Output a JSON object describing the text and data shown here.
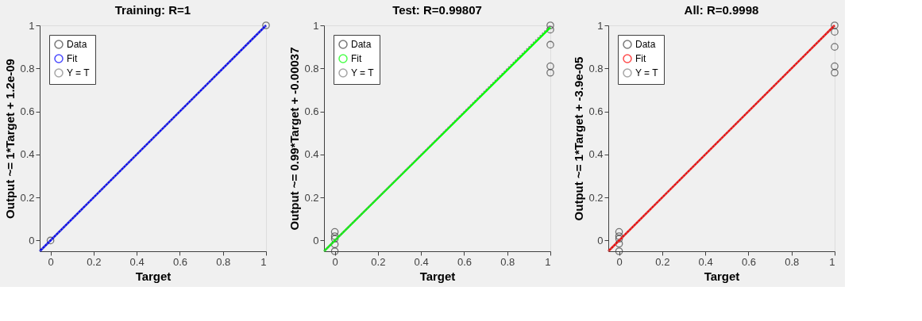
{
  "chart_data": [
    {
      "type": "scatter",
      "title": "Training: R=1",
      "xlabel": "Target",
      "ylabel": "Output ~= 1*Target + 1.2e-09",
      "xlim": [
        -0.05,
        1
      ],
      "ylim": [
        -0.05,
        1
      ],
      "xticks": [
        0,
        0.2,
        0.4,
        0.6,
        0.8,
        1
      ],
      "yticks": [
        0,
        0.2,
        0.4,
        0.6,
        0.8,
        1
      ],
      "grid": false,
      "legend": "top left",
      "series": [
        {
          "name": "Data",
          "marker": "circle",
          "color": "#404040",
          "x": [
            0,
            1
          ],
          "values": [
            0,
            1
          ]
        },
        {
          "name": "Fit",
          "type": "line",
          "line_style": "solid",
          "color": "#0000ff",
          "x": [
            -0.05,
            1
          ],
          "values": [
            -0.05,
            1
          ]
        },
        {
          "name": "Y = T",
          "type": "line",
          "line_style": "dotted",
          "color": "#808080",
          "x": [
            -0.05,
            1
          ],
          "values": [
            -0.05,
            1
          ]
        }
      ]
    },
    {
      "type": "scatter",
      "title": "Test: R=0.99807",
      "xlabel": "Target",
      "ylabel": "Output ~= 0.99*Target + -0.00037",
      "xlim": [
        -0.05,
        1
      ],
      "ylim": [
        -0.05,
        1
      ],
      "xticks": [
        0,
        0.2,
        0.4,
        0.6,
        0.8,
        1
      ],
      "yticks": [
        0,
        0.2,
        0.4,
        0.6,
        0.8,
        1
      ],
      "grid": false,
      "legend": "top left",
      "series": [
        {
          "name": "Data",
          "marker": "circle",
          "color": "#404040",
          "x": [
            0,
            0,
            0,
            0,
            0,
            1,
            1,
            1,
            1,
            1
          ],
          "values": [
            0.04,
            0.02,
            0.008,
            -0.018,
            -0.05,
            1,
            0.98,
            0.91,
            0.81,
            0.78
          ]
        },
        {
          "name": "Fit",
          "type": "line",
          "line_style": "solid",
          "color": "#00ff00",
          "x": [
            -0.05,
            1
          ],
          "values": [
            -0.05,
            0.99
          ]
        },
        {
          "name": "Y = T",
          "type": "line",
          "line_style": "dotted",
          "color": "#808080",
          "x": [
            -0.05,
            1
          ],
          "values": [
            -0.05,
            1
          ]
        }
      ]
    },
    {
      "type": "scatter",
      "title": "All: R=0.9998",
      "xlabel": "Target",
      "ylabel": "Output ~= 1*Target + -3.9e-05",
      "xlim": [
        -0.05,
        1
      ],
      "ylim": [
        -0.05,
        1
      ],
      "xticks": [
        0,
        0.2,
        0.4,
        0.6,
        0.8,
        1
      ],
      "yticks": [
        0,
        0.2,
        0.4,
        0.6,
        0.8,
        1
      ],
      "grid": false,
      "legend": "top left",
      "series": [
        {
          "name": "Data",
          "marker": "circle",
          "color": "#404040",
          "x": [
            0,
            0,
            0,
            0,
            0,
            1,
            1,
            1,
            1,
            1
          ],
          "values": [
            0.04,
            0.02,
            0.008,
            -0.015,
            -0.05,
            1,
            0.97,
            0.9,
            0.81,
            0.78
          ]
        },
        {
          "name": "Fit",
          "type": "line",
          "line_style": "solid",
          "color": "#ff0000",
          "x": [
            -0.05,
            1
          ],
          "values": [
            -0.05,
            1
          ]
        },
        {
          "name": "Y = T",
          "type": "line",
          "line_style": "dotted",
          "color": "#808080",
          "x": [
            -0.05,
            1
          ],
          "values": [
            -0.05,
            1
          ]
        }
      ]
    }
  ]
}
